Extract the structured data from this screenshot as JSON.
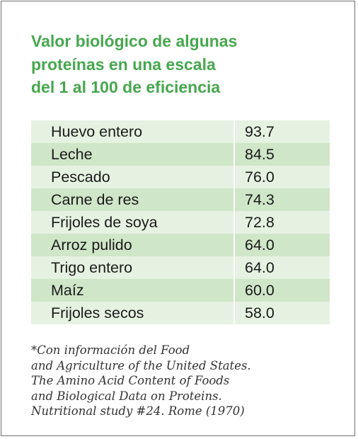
{
  "title": {
    "line1": "Valor biológico de algunas",
    "line2": "proteínas en una escala",
    "line3": "del 1 al 100 de eficiencia"
  },
  "colors": {
    "title": "#46a74e",
    "row_light": "#e6f2e1",
    "row_dark": "#cfe6c8",
    "border": "#6e6e6e"
  },
  "table": {
    "rows": [
      {
        "name": "Huevo entero",
        "value": "93.7"
      },
      {
        "name": "Leche",
        "value": "84.5"
      },
      {
        "name": "Pescado",
        "value": "76.0"
      },
      {
        "name": "Carne de res",
        "value": "74.3"
      },
      {
        "name": "Frijoles de soya",
        "value": "72.8"
      },
      {
        "name": "Arroz pulido",
        "value": "64.0"
      },
      {
        "name": "Trigo entero",
        "value": "64.0"
      },
      {
        "name": "Maíz",
        "value": "60.0"
      },
      {
        "name": "Frijoles secos",
        "value": "58.0"
      }
    ]
  },
  "footnote": {
    "line1": "*Con información del Food",
    "line2": "and Agriculture of the United States.",
    "line3": "The Amino Acid Content of Foods",
    "line4": "and Biological Data on Proteins.",
    "line5": "Nutritional study #24. Rome (1970)"
  }
}
